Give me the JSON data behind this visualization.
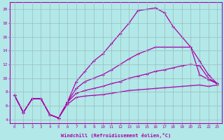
{
  "xlabel": "Windchill (Refroidissement éolien,°C)",
  "background_color": "#b2e8e8",
  "line_color": "#aa00aa",
  "xlim": [
    -0.5,
    23.5
  ],
  "ylim": [
    3.5,
    21.0
  ],
  "yticks": [
    4,
    6,
    8,
    10,
    12,
    14,
    16,
    18,
    20
  ],
  "xticks": [
    0,
    1,
    2,
    3,
    4,
    5,
    6,
    7,
    8,
    9,
    10,
    11,
    12,
    13,
    14,
    15,
    16,
    17,
    18,
    19,
    20,
    21,
    22,
    23
  ],
  "series": [
    {
      "x": [
        0,
        1,
        2,
        3,
        4,
        5,
        6,
        7,
        8,
        9,
        10,
        11,
        12,
        13,
        14,
        15,
        16,
        17,
        18,
        19,
        20,
        21,
        22,
        23
      ],
      "y": [
        7.5,
        5.0,
        7.0,
        7.0,
        4.7,
        4.2,
        6.5,
        9.5,
        11.0,
        12.5,
        13.5,
        15.0,
        16.5,
        18.0,
        19.8,
        20.0,
        20.2,
        19.5,
        17.5,
        16.0,
        14.5,
        12.5,
        10.5,
        9.2
      ]
    },
    {
      "x": [
        0,
        1,
        2,
        3,
        4,
        5,
        6,
        7,
        8,
        9,
        10,
        11,
        12,
        13,
        14,
        15,
        16,
        17,
        18,
        19,
        20,
        21,
        22,
        23
      ],
      "y": [
        7.5,
        5.0,
        7.0,
        7.0,
        4.7,
        4.2,
        6.5,
        8.5,
        9.5,
        10.0,
        10.5,
        11.2,
        12.0,
        12.8,
        13.5,
        14.0,
        14.5,
        14.5,
        14.5,
        14.5,
        14.5,
        10.5,
        9.8,
        9.2
      ]
    },
    {
      "x": [
        0,
        1,
        2,
        3,
        4,
        5,
        6,
        7,
        8,
        9,
        10,
        11,
        12,
        13,
        14,
        15,
        16,
        17,
        18,
        19,
        20,
        21,
        22,
        23
      ],
      "y": [
        7.5,
        5.0,
        7.0,
        7.0,
        4.7,
        4.2,
        6.5,
        7.8,
        8.2,
        8.5,
        8.8,
        9.2,
        9.5,
        10.0,
        10.3,
        10.6,
        11.0,
        11.2,
        11.5,
        11.8,
        12.0,
        11.8,
        10.0,
        9.2
      ]
    },
    {
      "x": [
        0,
        1,
        2,
        3,
        4,
        5,
        6,
        7,
        8,
        9,
        10,
        11,
        12,
        13,
        14,
        15,
        16,
        17,
        18,
        19,
        20,
        21,
        22,
        23
      ],
      "y": [
        7.5,
        5.0,
        7.0,
        7.0,
        4.7,
        4.2,
        6.2,
        7.2,
        7.4,
        7.5,
        7.6,
        7.8,
        8.0,
        8.2,
        8.3,
        8.4,
        8.5,
        8.6,
        8.7,
        8.8,
        8.9,
        9.0,
        8.8,
        9.0
      ]
    }
  ]
}
